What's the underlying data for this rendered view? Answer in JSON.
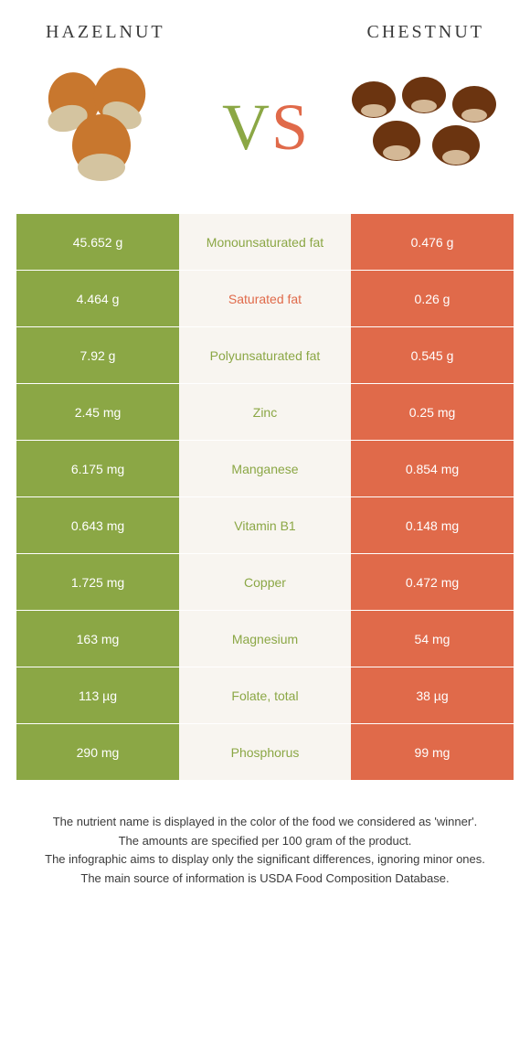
{
  "header": {
    "left_title": "Hazelnut",
    "right_title": "Chestnut"
  },
  "vs": {
    "v": "V",
    "s": "S"
  },
  "colors": {
    "left": "#8ba745",
    "right": "#e06a4a",
    "middle_bg": "#f8f5f0",
    "left_text": "#8ba745",
    "right_text": "#e06a4a"
  },
  "rows": [
    {
      "label": "Monounsaturated fat",
      "left": "45.652 g",
      "right": "0.476 g",
      "winner": "left"
    },
    {
      "label": "Saturated fat",
      "left": "4.464 g",
      "right": "0.26 g",
      "winner": "right"
    },
    {
      "label": "Polyunsaturated fat",
      "left": "7.92 g",
      "right": "0.545 g",
      "winner": "left"
    },
    {
      "label": "Zinc",
      "left": "2.45 mg",
      "right": "0.25 mg",
      "winner": "left"
    },
    {
      "label": "Manganese",
      "left": "6.175 mg",
      "right": "0.854 mg",
      "winner": "left"
    },
    {
      "label": "Vitamin B1",
      "left": "0.643 mg",
      "right": "0.148 mg",
      "winner": "left"
    },
    {
      "label": "Copper",
      "left": "1.725 mg",
      "right": "0.472 mg",
      "winner": "left"
    },
    {
      "label": "Magnesium",
      "left": "163 mg",
      "right": "54 mg",
      "winner": "left"
    },
    {
      "label": "Folate, total",
      "left": "113 µg",
      "right": "38 µg",
      "winner": "left"
    },
    {
      "label": "Phosphorus",
      "left": "290 mg",
      "right": "99 mg",
      "winner": "left"
    }
  ],
  "footer": {
    "line1": "The nutrient name is displayed in the color of the food we considered as 'winner'.",
    "line2": "The amounts are specified per 100 gram of the product.",
    "line3": "The infographic aims to display only the significant differences, ignoring minor ones.",
    "line4": "The main source of information is USDA Food Composition Database."
  }
}
